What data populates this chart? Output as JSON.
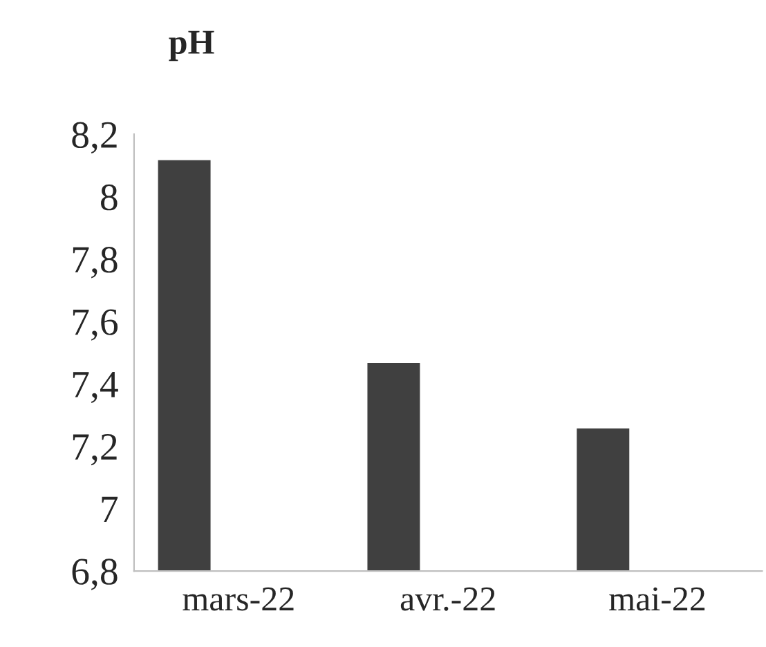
{
  "chart_data": {
    "type": "bar",
    "title": "pH",
    "categories": [
      "mars-22",
      "avr.-22",
      "mai-22"
    ],
    "series": [
      {
        "color": "#404040",
        "values": [
          8.12,
          7.47,
          7.26
        ]
      }
    ],
    "ylim": [
      6.8,
      8.2
    ],
    "yticks": [
      {
        "value": 6.8,
        "label": "6,8"
      },
      {
        "value": 7,
        "label": "7"
      },
      {
        "value": 7.2,
        "label": "7,2"
      },
      {
        "value": 7.4,
        "label": "7,4"
      },
      {
        "value": 7.6,
        "label": "7,6"
      },
      {
        "value": 7.8,
        "label": "7,8"
      },
      {
        "value": 8,
        "label": "8"
      },
      {
        "value": 8.2,
        "label": "8,2"
      }
    ],
    "grid": false,
    "legend": false
  }
}
